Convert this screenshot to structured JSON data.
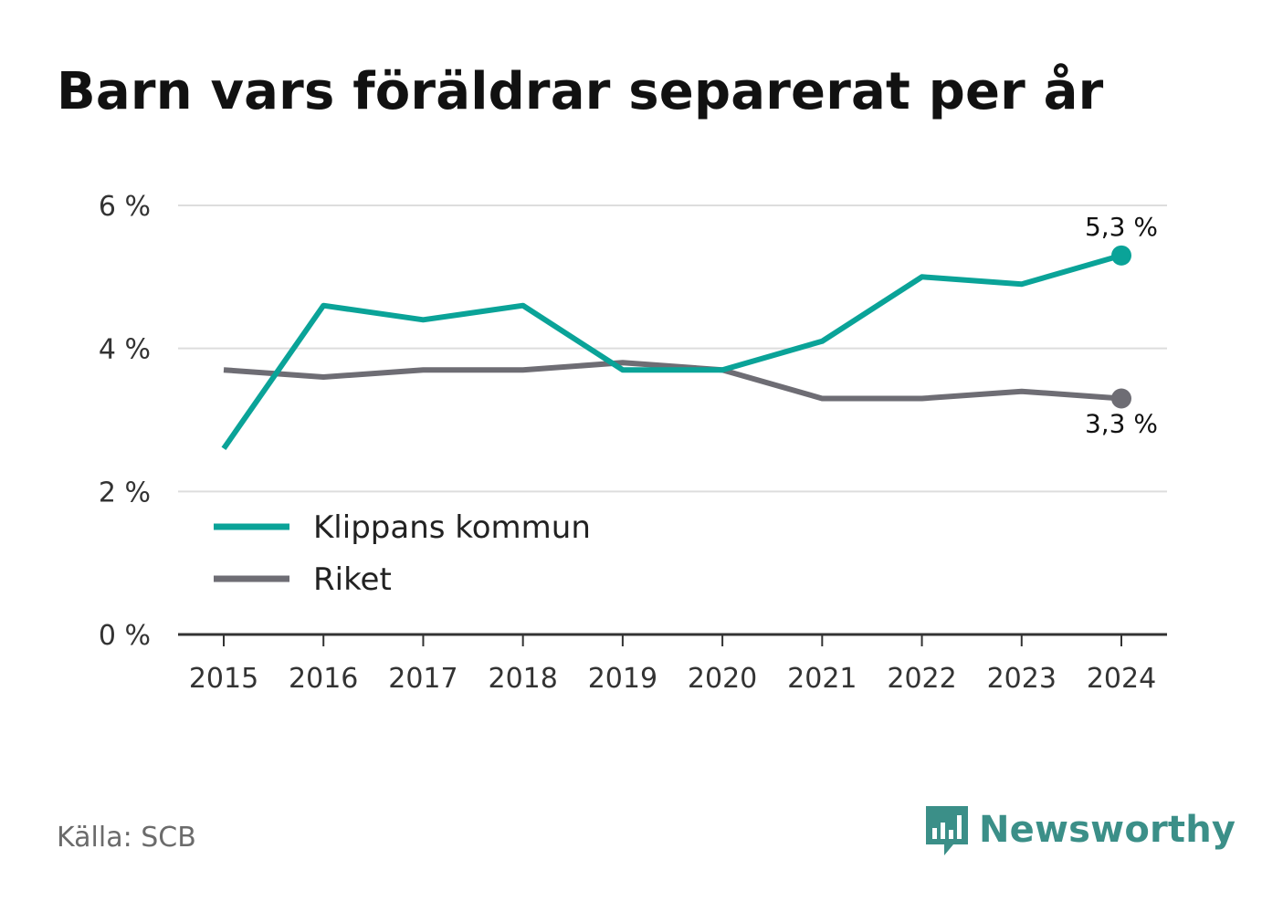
{
  "title": "Barn vars föräldrar separerat per år",
  "source": "Källa: SCB",
  "brand": {
    "name": "Newsworthy",
    "icon": "newsworthy-logo-icon",
    "color": "#3b8f88"
  },
  "chart_data": {
    "type": "line",
    "x": [
      "2015",
      "2016",
      "2017",
      "2018",
      "2019",
      "2020",
      "2021",
      "2022",
      "2023",
      "2024"
    ],
    "series": [
      {
        "name": "Klippans kommun",
        "color": "#0aa398",
        "values": [
          2.6,
          4.6,
          4.4,
          4.6,
          3.7,
          3.7,
          4.1,
          5.0,
          4.9,
          5.3
        ],
        "end_label": "5,3 %"
      },
      {
        "name": "Riket",
        "color": "#6e6d74",
        "values": [
          3.7,
          3.6,
          3.7,
          3.7,
          3.8,
          3.7,
          3.3,
          3.3,
          3.4,
          3.3
        ],
        "end_label": "3,3 %"
      }
    ],
    "ylim": [
      0,
      6
    ],
    "yticks": [
      0,
      2,
      4,
      6
    ],
    "ytick_labels": [
      "0 %",
      "2 %",
      "4 %",
      "6 %"
    ],
    "grid": true,
    "legend": "bottom-left",
    "xlabel": "",
    "ylabel": ""
  }
}
